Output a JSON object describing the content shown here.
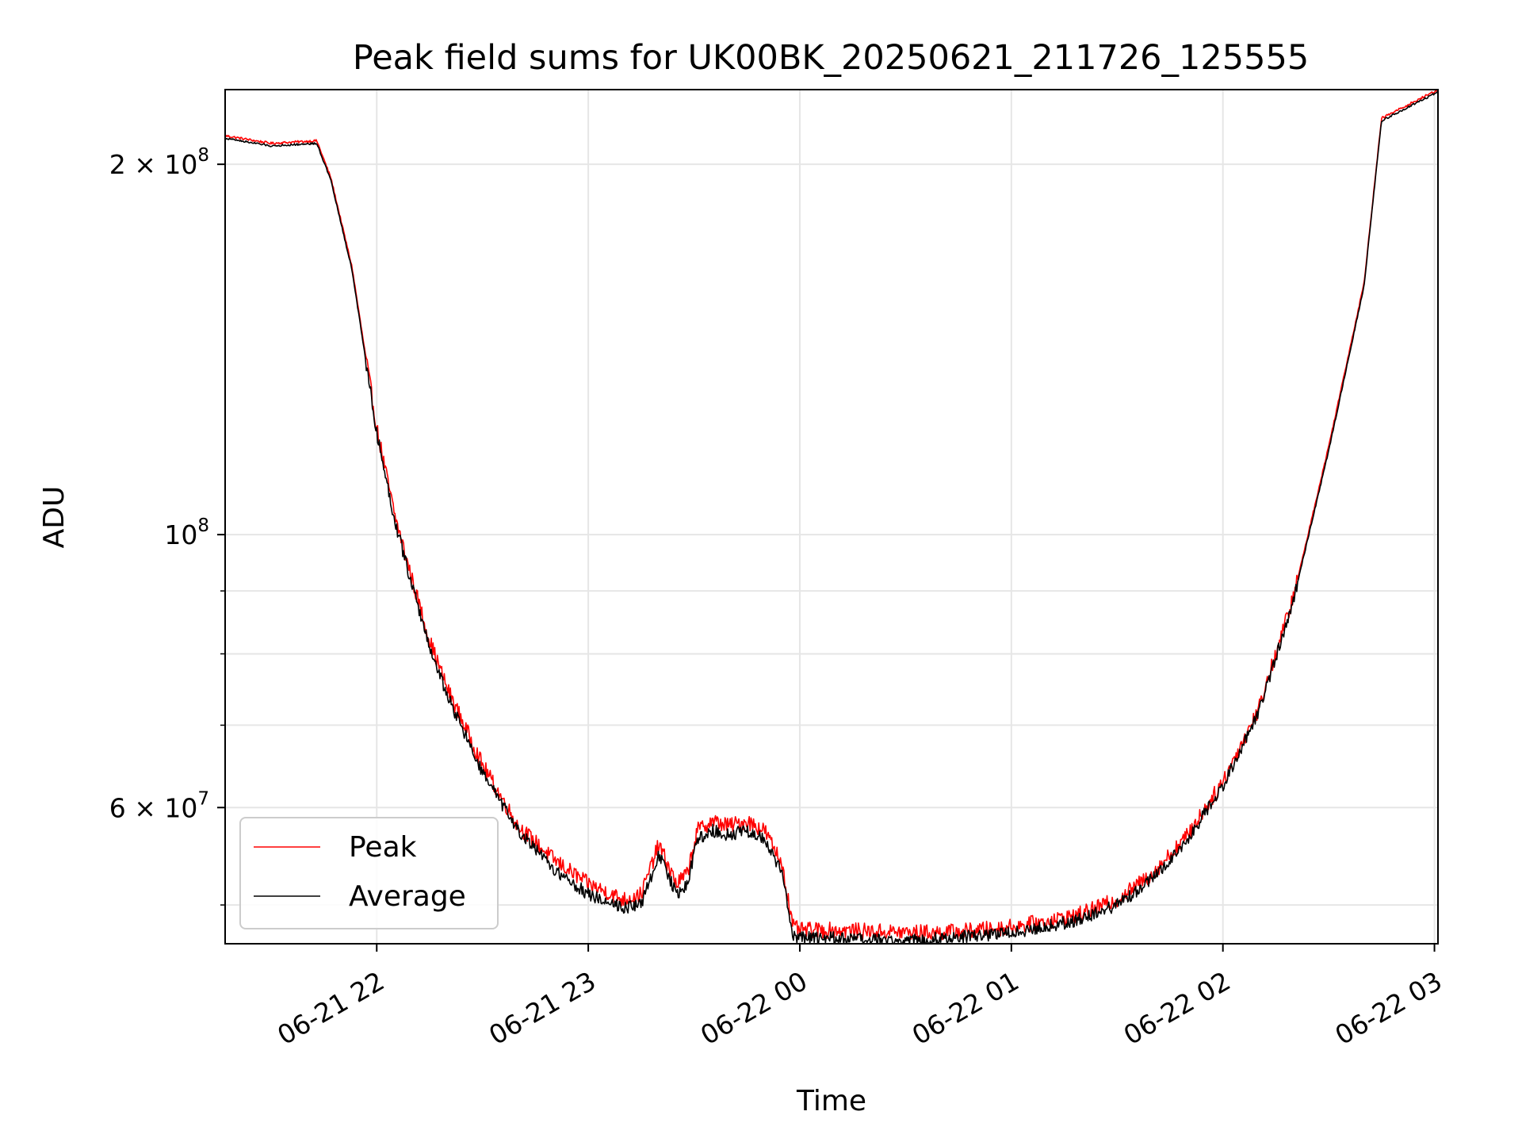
{
  "chart_data": {
    "type": "line",
    "title": "Peak field sums for UK00BK_20250621_211726_125555",
    "xlabel": "Time",
    "ylabel": "ADU",
    "x_scale": "time",
    "y_scale": "log",
    "xlim": [
      "2025-06-21T21:17",
      "2025-06-22T03:01"
    ],
    "ylim": [
      46500000,
      230000000
    ],
    "grid": true,
    "legend_position": "lower-left",
    "x_ticks": [
      {
        "value": "2025-06-21T22:00",
        "label": "06-21 22"
      },
      {
        "value": "2025-06-21T23:00",
        "label": "06-21 23"
      },
      {
        "value": "2025-06-22T00:00",
        "label": "06-22 00"
      },
      {
        "value": "2025-06-22T01:00",
        "label": "06-22 01"
      },
      {
        "value": "2025-06-22T02:00",
        "label": "06-22 02"
      },
      {
        "value": "2025-06-22T03:00",
        "label": "06-22 03"
      }
    ],
    "y_major_ticks": [
      {
        "value": 200000000,
        "mantissa": "2 × 10",
        "exponent": "8"
      },
      {
        "value": 100000000,
        "mantissa": "10",
        "exponent": "8"
      },
      {
        "value": 60000000,
        "mantissa": "6 × 10",
        "exponent": "7"
      }
    ],
    "y_minor_ticks": [
      50000000,
      70000000,
      80000000,
      90000000
    ],
    "series": [
      {
        "name": "Peak",
        "color": "#ff0000",
        "noise_amplitude": 0.015,
        "x": [
          "2025-06-21T21:17",
          "2025-06-21T21:30",
          "2025-06-21T21:43",
          "2025-06-21T21:47",
          "2025-06-21T21:53",
          "2025-06-21T22:00",
          "2025-06-21T22:05",
          "2025-06-21T22:10",
          "2025-06-21T22:15",
          "2025-06-21T22:20",
          "2025-06-21T22:30",
          "2025-06-21T22:40",
          "2025-06-21T22:50",
          "2025-06-21T23:00",
          "2025-06-21T23:10",
          "2025-06-21T23:15",
          "2025-06-21T23:20",
          "2025-06-21T23:25",
          "2025-06-21T23:28",
          "2025-06-21T23:31",
          "2025-06-21T23:35",
          "2025-06-21T23:40",
          "2025-06-21T23:45",
          "2025-06-21T23:50",
          "2025-06-21T23:55",
          "2025-06-21T23:58",
          "2025-06-22T00:00",
          "2025-06-22T00:10",
          "2025-06-22T00:20",
          "2025-06-22T00:30",
          "2025-06-22T00:40",
          "2025-06-22T00:50",
          "2025-06-22T01:00",
          "2025-06-22T01:10",
          "2025-06-22T01:20",
          "2025-06-22T01:30",
          "2025-06-22T01:40",
          "2025-06-22T01:50",
          "2025-06-22T02:00",
          "2025-06-22T02:10",
          "2025-06-22T02:20",
          "2025-06-22T02:30",
          "2025-06-22T02:40",
          "2025-06-22T02:45",
          "2025-06-22T03:01"
        ],
        "values": [
          211000000,
          208000000,
          209000000,
          195000000,
          165000000,
          122000000,
          104000000,
          92000000,
          82000000,
          75000000,
          65000000,
          58000000,
          54500000,
          52000000,
          50500000,
          51000000,
          56000000,
          52000000,
          53000000,
          57500000,
          58500000,
          58000000,
          58500000,
          57500000,
          54000000,
          48000000,
          47700000,
          47700000,
          47600000,
          47500000,
          47500000,
          47700000,
          48000000,
          48500000,
          49200000,
          50500000,
          53000000,
          57000000,
          63000000,
          72000000,
          89000000,
          118000000,
          160000000,
          218000000,
          230000000
        ]
      },
      {
        "name": "Average",
        "color": "#000000",
        "noise_amplitude": 0.012,
        "x": [
          "2025-06-21T21:17",
          "2025-06-21T21:30",
          "2025-06-21T21:43",
          "2025-06-21T21:47",
          "2025-06-21T21:53",
          "2025-06-21T22:00",
          "2025-06-21T22:05",
          "2025-06-21T22:10",
          "2025-06-21T22:15",
          "2025-06-21T22:20",
          "2025-06-21T22:30",
          "2025-06-21T22:40",
          "2025-06-21T22:50",
          "2025-06-21T23:00",
          "2025-06-21T23:10",
          "2025-06-21T23:15",
          "2025-06-21T23:20",
          "2025-06-21T23:25",
          "2025-06-21T23:28",
          "2025-06-21T23:31",
          "2025-06-21T23:35",
          "2025-06-21T23:40",
          "2025-06-21T23:45",
          "2025-06-21T23:50",
          "2025-06-21T23:55",
          "2025-06-21T23:58",
          "2025-06-22T00:00",
          "2025-06-22T00:10",
          "2025-06-22T00:20",
          "2025-06-22T00:30",
          "2025-06-22T00:40",
          "2025-06-22T00:50",
          "2025-06-22T01:00",
          "2025-06-22T01:10",
          "2025-06-22T01:20",
          "2025-06-22T01:30",
          "2025-06-22T01:40",
          "2025-06-22T01:50",
          "2025-06-22T02:00",
          "2025-06-22T02:10",
          "2025-06-22T02:20",
          "2025-06-22T02:30",
          "2025-06-22T02:40",
          "2025-06-22T02:45",
          "2025-06-22T03:01"
        ],
        "values": [
          210000000,
          207000000,
          208000000,
          194000000,
          164000000,
          121000000,
          103000000,
          91000000,
          81000000,
          74000000,
          64000000,
          57500000,
          53500000,
          51000000,
          49800000,
          50000000,
          55000000,
          51000000,
          52000000,
          56500000,
          57500000,
          57000000,
          57500000,
          56500000,
          53000000,
          47300000,
          47000000,
          47000000,
          46800000,
          46800000,
          47000000,
          47200000,
          47500000,
          48000000,
          48700000,
          50000000,
          52500000,
          56500000,
          62500000,
          71500000,
          88500000,
          117000000,
          159000000,
          217000000,
          229000000
        ]
      }
    ]
  }
}
